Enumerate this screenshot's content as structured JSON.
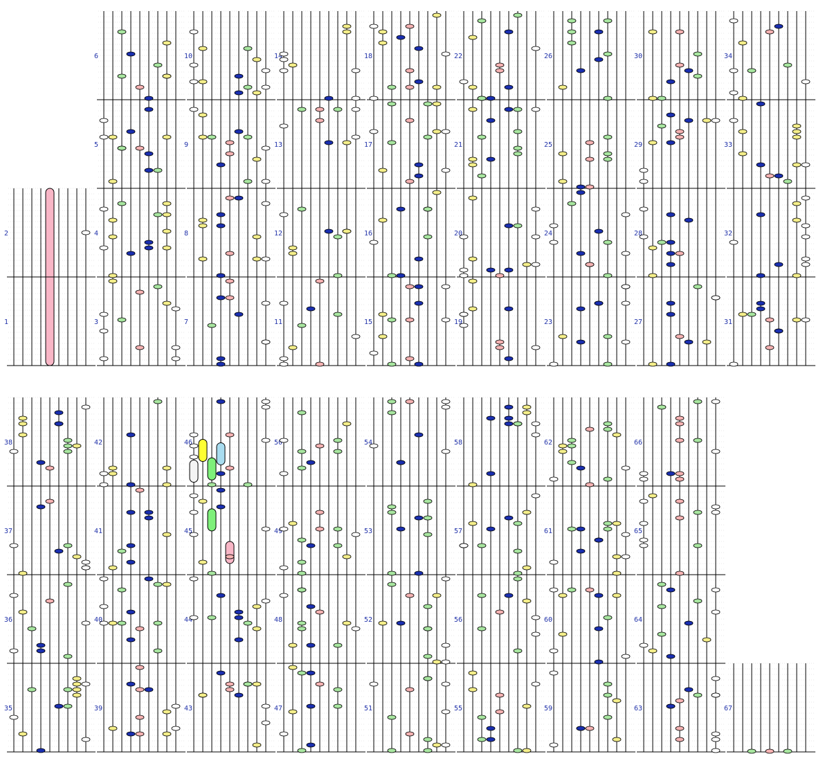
{
  "colors": {
    "background": "#ffffff",
    "line": "#000000",
    "grid": "#d0d0d0",
    "number": "#2233aa",
    "white_note": "#ffffff",
    "yellow_note": "#f4ee8a",
    "green_note": "#a8e6a0",
    "pink_note": "#f6b3b3",
    "blue_note": "#1a2fb0",
    "hold_pink": "#f8b6c6",
    "hold_blue": "#a8dcef",
    "hold_green": "#7ef07a",
    "hold_yellow": "#ffff33",
    "hold_white": "#f4f4f4"
  },
  "lanes": [
    "white",
    "yellow",
    "green",
    "blue",
    "pink",
    "blue",
    "green",
    "yellow",
    "white"
  ],
  "rows": [
    {
      "measures": [
        "1",
        "2",
        "3",
        "4",
        "5",
        "6",
        "7",
        "8",
        "9",
        "10",
        "11",
        "12",
        "13",
        "14",
        "15",
        "16",
        "17",
        "18",
        "19",
        "20",
        "21",
        "22",
        "23",
        "24",
        "25",
        "26",
        "27",
        "28",
        "29",
        "30",
        "31",
        "32",
        "33",
        "34"
      ]
    },
    {
      "measures": [
        "35",
        "36",
        "37",
        "38",
        "39",
        "40",
        "41",
        "42",
        "43",
        "44",
        "45",
        "46",
        "47",
        "48",
        "49",
        "50",
        "51",
        "52",
        "53",
        "54",
        "55",
        "56",
        "57",
        "58",
        "59",
        "60",
        "61",
        "62",
        "63",
        "64",
        "65",
        "66",
        "67"
      ]
    }
  ],
  "long_notes": [
    {
      "measure": "1",
      "lane": "pink",
      "length_measures": 2
    },
    {
      "measure": "45",
      "lane": "pink",
      "length_measures": 0.25
    },
    {
      "measure": "46",
      "lane": "blue",
      "length_measures": 0.25
    },
    {
      "measure": "46",
      "lane": "yellow",
      "length_measures": 0.25
    },
    {
      "measure": "46",
      "lane": "green",
      "length_measures": 0.25
    },
    {
      "measure": "46",
      "lane": "white",
      "length_measures": 0.25
    },
    {
      "measure": "45",
      "lane": "green",
      "length_measures": 0.25
    }
  ]
}
